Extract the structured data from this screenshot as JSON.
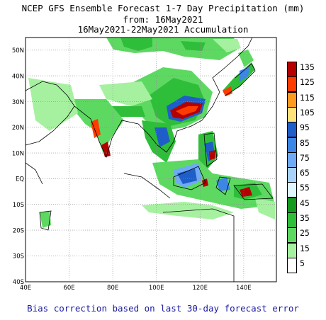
{
  "title": {
    "line1": "NCEP GFS Ensemble Forecast 1-7 Day Precipitation (mm)",
    "line2": "from: 16May2021",
    "line3": "16May2021-22May2021 Accumulation"
  },
  "map": {
    "lon_range": [
      40,
      155
    ],
    "lat_range": [
      -40,
      55
    ],
    "lon_ticks": [
      "40E",
      "60E",
      "80E",
      "100E",
      "120E",
      "140E"
    ],
    "lat_ticks": [
      "50N",
      "40N",
      "30N",
      "20N",
      "10N",
      "EQ",
      "10S",
      "20S",
      "30S",
      "40S"
    ],
    "grid": "dotted"
  },
  "legend": {
    "levels": [
      {
        "label": "135",
        "color": "#b40000"
      },
      {
        "label": "125",
        "color": "#ff3c00"
      },
      {
        "label": "115",
        "color": "#ff9a20"
      },
      {
        "label": "105",
        "color": "#ffe27a"
      },
      {
        "label": "95",
        "color": "#1f5ec8"
      },
      {
        "label": "85",
        "color": "#3c86e6"
      },
      {
        "label": "75",
        "color": "#6eaaf6"
      },
      {
        "label": "65",
        "color": "#a9d2fb"
      },
      {
        "label": "55",
        "color": "#e0f5ff"
      },
      {
        "label": "45",
        "color": "#139a1e"
      },
      {
        "label": "35",
        "color": "#2fbe3a"
      },
      {
        "label": "25",
        "color": "#5dd962"
      },
      {
        "label": "15",
        "color": "#a6f1a0"
      },
      {
        "label": "5",
        "color": "#ffffff"
      }
    ]
  },
  "footer": "Bias correction based on last 30-day forecast error"
}
